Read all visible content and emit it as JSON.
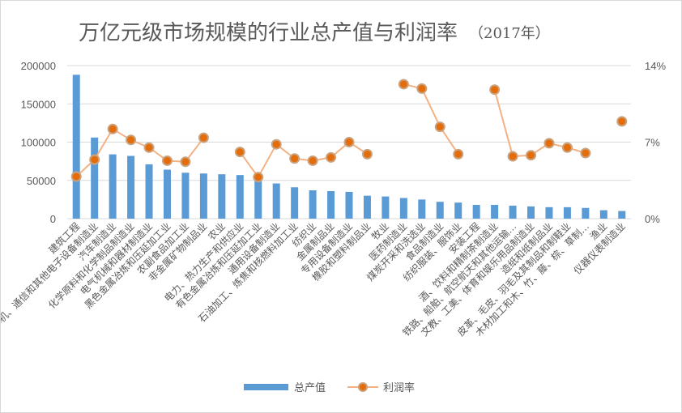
{
  "chart_data": {
    "type": "bar+line",
    "title": "万亿元级市场规模的行业总产值与利润率",
    "subtitle": "（2017年）",
    "categories": [
      "建筑工程",
      "计算机、通信和其他电子设备制造业",
      "汽车制造业",
      "化学原料和化学制品制造业",
      "电气机械和器材制造业",
      "黑色金属冶炼和压延加工业",
      "农副食品加工业",
      "非金属矿物制品业",
      "农业",
      "电力、热力生产和供应业",
      "有色金属冶炼和压延加工业",
      "通用设备制造业",
      "石油加工、炼焦和核燃料加工业",
      "纺织业",
      "金属制品业",
      "专用设备制造业",
      "橡胶和塑料制品业",
      "牧业",
      "医药制造业",
      "煤炭开采和洗选业",
      "食品制造业",
      "纺织服装、服饰业",
      "安装工程",
      "酒、饮料和精制茶制造业",
      "铁路、船舶、航空航天和其他运输…",
      "文教、工美、体育和娱乐用品制造业",
      "造纸和纸制品业",
      "皮革、毛皮、羽毛及其制品和制鞋业",
      "木材加工和木、竹、藤、棕、草制…",
      "渔业",
      "仪器仪表制造业"
    ],
    "series": [
      {
        "name": "总产值",
        "type": "bar",
        "axis": "left",
        "color": "#5b9bd5",
        "values": [
          188000,
          106000,
          84000,
          82000,
          71000,
          64000,
          60000,
          59000,
          58000,
          57000,
          55000,
          46000,
          41000,
          37000,
          36000,
          35000,
          30000,
          29000,
          27000,
          25000,
          22000,
          21000,
          18000,
          18000,
          17000,
          16000,
          15000,
          15000,
          14000,
          11000,
          10000
        ]
      },
      {
        "name": "利润率",
        "type": "line",
        "axis": "right",
        "color": "#ed7d31",
        "values": [
          3.85,
          5.4,
          8.2,
          7.2,
          6.5,
          5.3,
          5.2,
          7.4,
          null,
          6.1,
          3.8,
          6.8,
          5.5,
          5.3,
          5.6,
          7.0,
          5.9,
          null,
          12.3,
          11.9,
          8.4,
          5.9,
          null,
          11.8,
          5.7,
          5.8,
          6.9,
          6.5,
          6.0,
          null,
          8.9
        ]
      }
    ],
    "y_left": {
      "range": [
        0,
        200000
      ],
      "ticks": [
        "0",
        "50000",
        "100000",
        "150000",
        "200000"
      ]
    },
    "y_right": {
      "range": [
        0,
        14
      ],
      "ticks": [
        "0%",
        "7%",
        "14%"
      ]
    },
    "grid": true,
    "legend": "bottom"
  }
}
